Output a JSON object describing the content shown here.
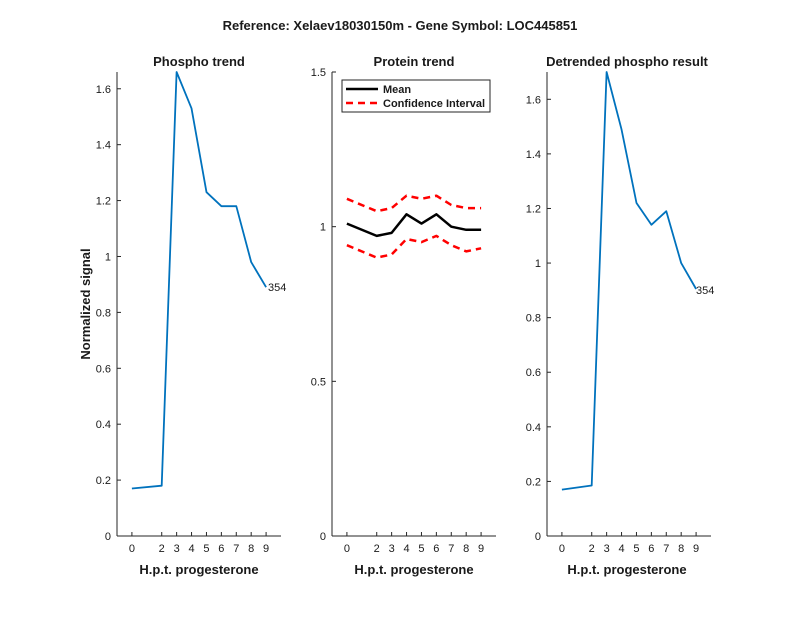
{
  "figure": {
    "title": "Reference:  Xelaev18030150m - Gene Symbol:  LOC445851"
  },
  "chart_data": [
    {
      "type": "line",
      "title": "Phospho trend",
      "xlabel": "H.p.t. progesterone",
      "ylabel": "Normalized signal",
      "x": [
        0,
        2,
        3,
        4,
        5,
        6,
        7,
        8,
        9
      ],
      "xticks": [
        "0",
        "2",
        "3",
        "4",
        "5",
        "6",
        "7",
        "8",
        "9"
      ],
      "xlim": [
        -1,
        10
      ],
      "ylim": [
        0,
        1.66
      ],
      "yticks": [
        "0",
        "0.2",
        "0.4",
        "0.6",
        "0.8",
        "1",
        "1.2",
        "1.4",
        "1.6"
      ],
      "series": [
        {
          "values": [
            0.17,
            0.18,
            1.66,
            1.53,
            1.23,
            1.18,
            1.18,
            0.98,
            0.89
          ],
          "color": "#0072BD"
        }
      ],
      "end_label": "354"
    },
    {
      "type": "line",
      "title": "Protein trend",
      "xlabel": "H.p.t. progesterone",
      "ylabel": "",
      "x": [
        0,
        2,
        3,
        4,
        5,
        6,
        7,
        8,
        9
      ],
      "xticks": [
        "0",
        "2",
        "3",
        "4",
        "5",
        "6",
        "7",
        "8",
        "9"
      ],
      "xlim": [
        -1,
        10
      ],
      "ylim": [
        0,
        1.5
      ],
      "yticks": [
        "0",
        "0.5",
        "1",
        "1.5"
      ],
      "legend": {
        "placement": "top-left"
      },
      "series": [
        {
          "name": "Mean",
          "values": [
            1.01,
            0.97,
            0.98,
            1.04,
            1.01,
            1.04,
            1.0,
            0.99,
            0.99
          ],
          "color": "#000000",
          "style": "solid"
        },
        {
          "name": "Confidence Interval",
          "values": [
            1.09,
            1.05,
            1.06,
            1.1,
            1.09,
            1.1,
            1.07,
            1.06,
            1.06
          ],
          "color": "#FF0000",
          "style": "dashed"
        },
        {
          "values": [
            0.94,
            0.9,
            0.91,
            0.96,
            0.95,
            0.97,
            0.94,
            0.92,
            0.93
          ],
          "color": "#FF0000",
          "style": "dashed"
        }
      ]
    },
    {
      "type": "line",
      "title": "Detrended phospho result",
      "xlabel": "H.p.t. progesterone",
      "ylabel": "",
      "x": [
        0,
        2,
        3,
        4,
        5,
        6,
        7,
        8,
        9
      ],
      "xticks": [
        "0",
        "2",
        "3",
        "4",
        "5",
        "6",
        "7",
        "8",
        "9"
      ],
      "xlim": [
        -1,
        10
      ],
      "ylim": [
        0,
        1.7
      ],
      "yticks": [
        "0",
        "0.2",
        "0.4",
        "0.6",
        "0.8",
        "1",
        "1.2",
        "1.4",
        "1.6"
      ],
      "series": [
        {
          "values": [
            0.17,
            0.185,
            1.7,
            1.49,
            1.22,
            1.14,
            1.19,
            1.0,
            0.905
          ],
          "color": "#0072BD"
        }
      ],
      "end_label": "354"
    }
  ]
}
